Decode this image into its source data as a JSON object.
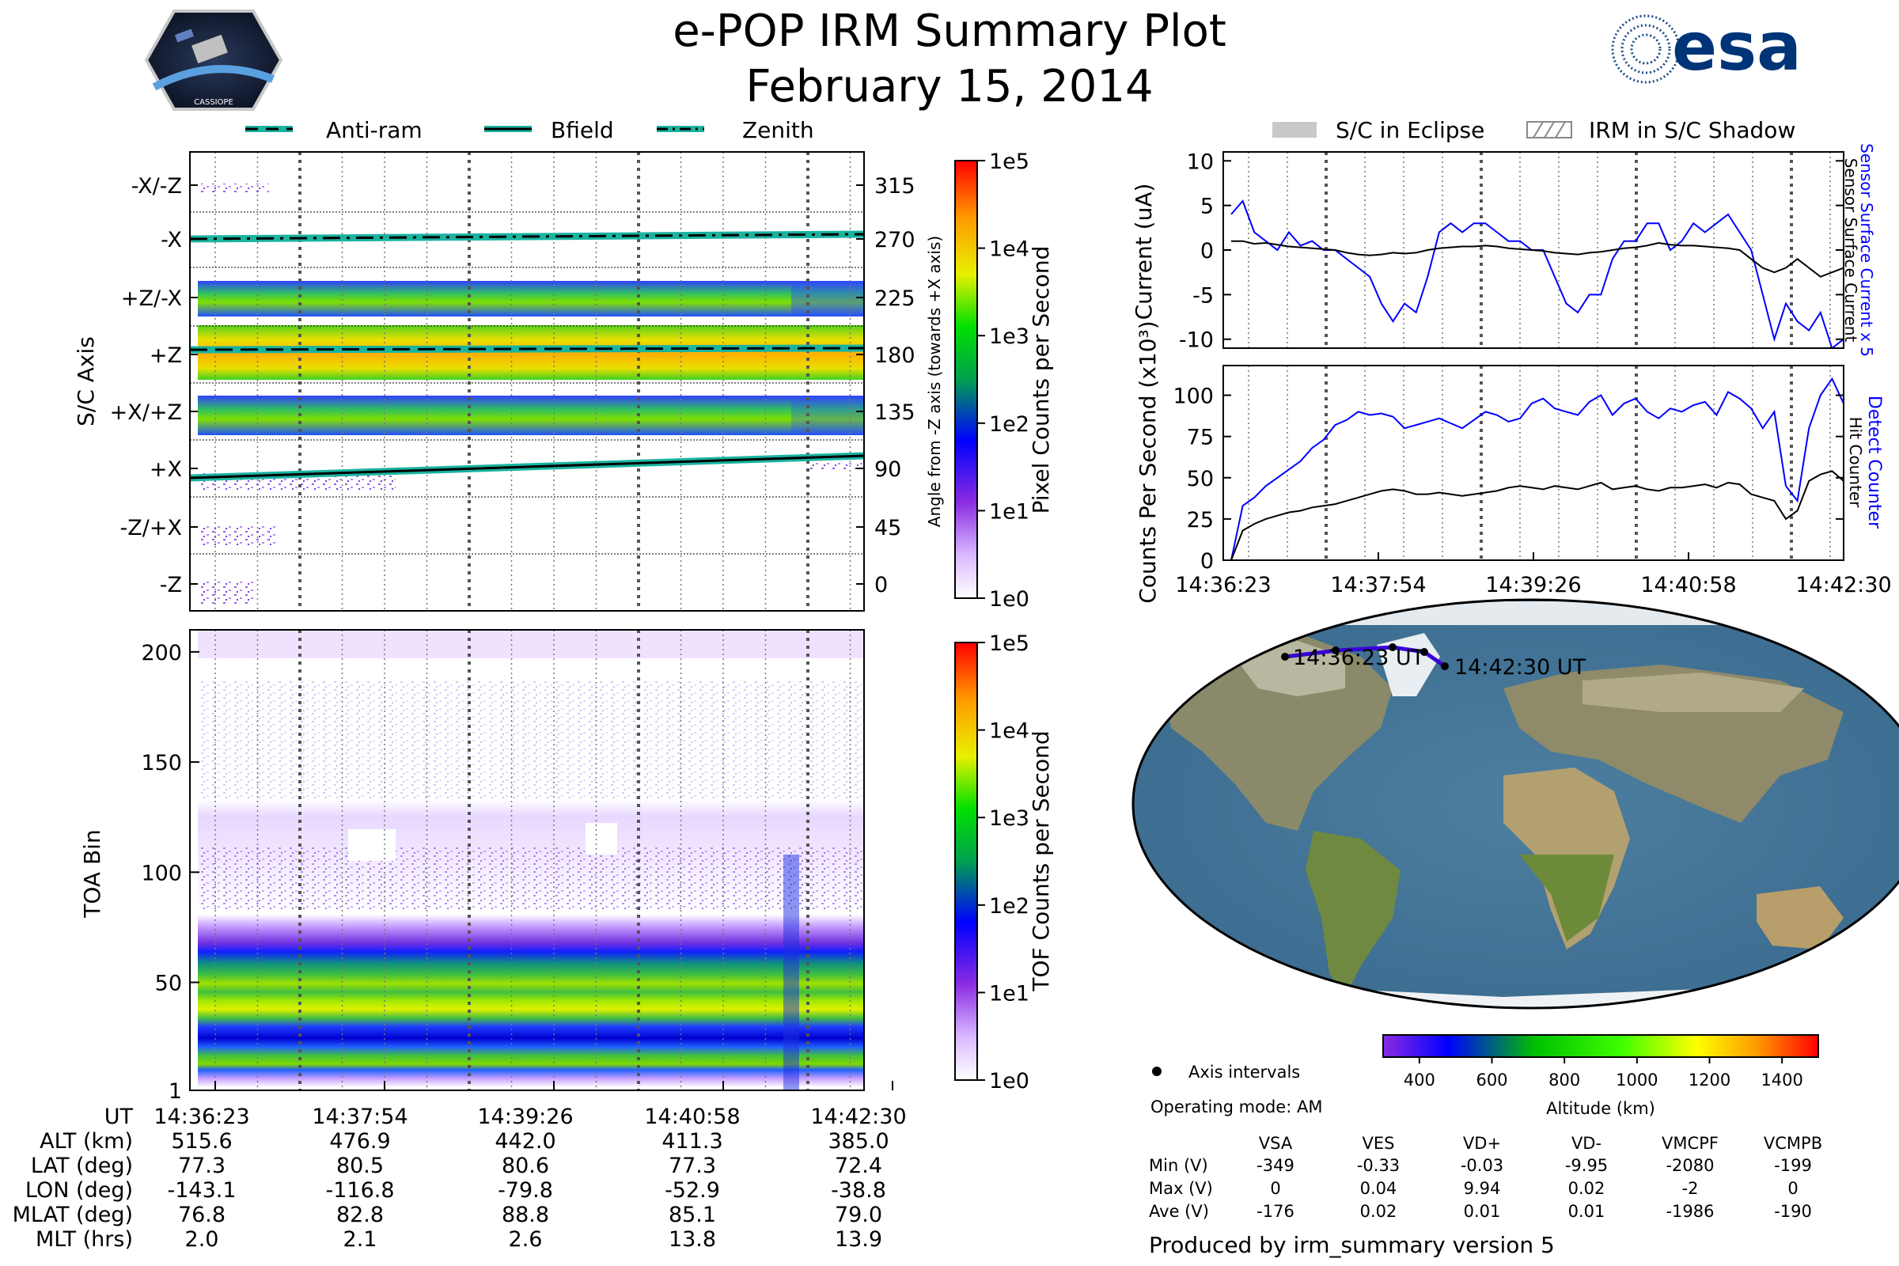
{
  "title": "e-POP IRM Summary Plot",
  "date": "February 15, 2014",
  "logos": {
    "left": "CASSIOPE",
    "right": "esa"
  },
  "footer": "Produced by irm_summary version 5",
  "top_legend": {
    "items": [
      "Anti-ram",
      "Bfield",
      "Zenith"
    ]
  },
  "eclipse_legend": {
    "items": [
      "S/C in Eclipse",
      "IRM in S/C Shadow"
    ]
  },
  "colors": {
    "accent": "#1ab3a0",
    "blue_trace": "#0000ff",
    "black_trace": "#000000",
    "map_track": "#3a00d8"
  },
  "chart_data": [
    {
      "type": "heatmap",
      "name": "pixel_counts",
      "ylabel": "S/C Axis",
      "y2label": "Angle from -Z axis (towards +X axis)",
      "axis_labels": [
        "-X/-Z",
        "-X",
        "+Z/-X",
        "+Z",
        "+X/+Z",
        "+X",
        "-Z/+X",
        "-Z"
      ],
      "angle_ticks": [
        "315",
        "270",
        "225",
        "180",
        "135",
        "90",
        "45",
        "0"
      ],
      "colorbar_label": "Pixel Counts per Second",
      "colorbar_ticks": [
        "1e5",
        "1e4",
        "1e3",
        "1e2",
        "1e1",
        "1e0"
      ],
      "lines": [
        {
          "name": "Zenith",
          "style": "dash-dot",
          "angle": [
            269,
            273
          ]
        },
        {
          "name": "Anti-ram",
          "style": "dashed",
          "angle": [
            182,
            184
          ]
        },
        {
          "name": "Bfield",
          "style": "solid",
          "angle": [
            81,
            99
          ]
        }
      ]
    },
    {
      "type": "heatmap",
      "name": "tof_counts",
      "ylabel": "TOA Bin",
      "yticks": [
        "200",
        "150",
        "100",
        "50",
        "1"
      ],
      "ylim": [
        1,
        210
      ],
      "colorbar_label": "TOF Counts per Second",
      "colorbar_ticks": [
        "1e5",
        "1e4",
        "1e3",
        "1e2",
        "1e1",
        "1e0"
      ]
    },
    {
      "type": "line",
      "name": "current",
      "ylabel": "Current (uA)",
      "yticks": [
        "10",
        "5",
        "0",
        "-5",
        "-10"
      ],
      "ylim": [
        -11,
        11
      ],
      "right_labels": [
        "Sensor Surface Current x 5",
        "Sensor Surface Current"
      ],
      "series": [
        {
          "name": "Sensor Surface Current x 5",
          "color": "#0000ff",
          "values": [
            4,
            5.5,
            2,
            1,
            0,
            2,
            0.5,
            1,
            0,
            0,
            -1,
            -2,
            -3,
            -6,
            -8,
            -6,
            -7,
            -3,
            2,
            3,
            2,
            3,
            3,
            2,
            1,
            1,
            0,
            0,
            -3,
            -6,
            -7,
            -5,
            -5,
            -1,
            1,
            1,
            3,
            3,
            0,
            1,
            3,
            2,
            3,
            4,
            2,
            0,
            -5,
            -10,
            -6,
            -8,
            -9,
            -7,
            -11,
            -10
          ]
        },
        {
          "name": "Sensor Surface Current",
          "color": "#000000",
          "values": [
            1,
            1,
            0.7,
            0.8,
            0.6,
            0.4,
            0.3,
            0.2,
            0.1,
            0,
            -0.3,
            -0.5,
            -0.6,
            -0.5,
            -0.3,
            -0.4,
            -0.3,
            0,
            0.2,
            0.3,
            0.4,
            0.4,
            0.5,
            0.4,
            0.2,
            0.1,
            0,
            -0.1,
            -0.3,
            -0.4,
            -0.5,
            -0.3,
            -0.2,
            0,
            0.2,
            0.3,
            0.5,
            0.8,
            0.6,
            0.5,
            0.5,
            0.4,
            0.3,
            0.2,
            0,
            -1,
            -2,
            -2.5,
            -2,
            -1,
            -2,
            -3,
            -2.5,
            -2
          ]
        }
      ]
    },
    {
      "type": "line",
      "name": "counts",
      "ylabel": "Counts Per Second (x10³)",
      "yticks": [
        "100",
        "75",
        "50",
        "25",
        "0"
      ],
      "ylim": [
        0,
        118
      ],
      "right_labels": [
        "Detect Counter",
        "Hit Counter"
      ],
      "xticks": [
        "14:36:23",
        "14:37:54",
        "14:39:26",
        "14:40:58",
        "14:42:30"
      ],
      "series": [
        {
          "name": "Detect Counter",
          "color": "#0000ff",
          "values": [
            0,
            33,
            38,
            45,
            50,
            55,
            60,
            68,
            73,
            82,
            85,
            90,
            88,
            89,
            87,
            80,
            82,
            84,
            86,
            83,
            80,
            85,
            90,
            88,
            84,
            86,
            95,
            98,
            92,
            90,
            88,
            96,
            100,
            88,
            95,
            98,
            90,
            86,
            92,
            90,
            94,
            96,
            88,
            102,
            98,
            92,
            80,
            90,
            45,
            36,
            80,
            100,
            110,
            95
          ]
        },
        {
          "name": "Hit Counter",
          "color": "#000000",
          "values": [
            0,
            18,
            22,
            25,
            27,
            29,
            30,
            32,
            33,
            34,
            36,
            38,
            40,
            42,
            43,
            42,
            40,
            40,
            41,
            40,
            39,
            40,
            41,
            42,
            44,
            45,
            44,
            43,
            45,
            44,
            43,
            45,
            47,
            43,
            44,
            45,
            43,
            42,
            44,
            44,
            45,
            46,
            44,
            47,
            46,
            40,
            38,
            36,
            25,
            30,
            48,
            52,
            54,
            48
          ]
        }
      ]
    },
    {
      "type": "line",
      "name": "orbit_map",
      "track_start": "14:36:23 UT",
      "track_end": "14:42:30 UT",
      "legend": "Axis intervals",
      "mode": "Operating mode: AM",
      "colorbar_label": "Altitude (km)",
      "colorbar_ticks": [
        "400",
        "600",
        "800",
        "1000",
        "1200",
        "1400"
      ]
    }
  ],
  "ephemeris": {
    "labels": [
      "UT",
      "ALT (km)",
      "LAT (deg)",
      "LON (deg)",
      "MLAT (deg)",
      "MLT (hrs)"
    ],
    "columns": [
      [
        "14:36:23",
        "515.6",
        "77.3",
        "-143.1",
        "76.8",
        "2.0"
      ],
      [
        "14:37:54",
        "476.9",
        "80.5",
        "-116.8",
        "82.8",
        "2.1"
      ],
      [
        "14:39:26",
        "442.0",
        "80.6",
        "-79.8",
        "88.8",
        "2.6"
      ],
      [
        "14:40:58",
        "411.3",
        "77.3",
        "-52.9",
        "85.1",
        "13.8"
      ],
      [
        "14:42:30",
        "385.0",
        "72.4",
        "-38.8",
        "79.0",
        "13.9"
      ]
    ]
  },
  "voltage_table": {
    "headers": [
      "VSA",
      "VES",
      "VD+",
      "VD-",
      "VMCPF",
      "VCMPB"
    ],
    "rows": [
      {
        "label": "Min (V)",
        "values": [
          "-349",
          "-0.33",
          "-0.03",
          "-9.95",
          "-2080",
          "-199"
        ]
      },
      {
        "label": "Max (V)",
        "values": [
          "0",
          "0.04",
          "9.94",
          "0.02",
          "-2",
          "0"
        ]
      },
      {
        "label": "Ave (V)",
        "values": [
          "-176",
          "0.02",
          "0.01",
          "0.01",
          "-1986",
          "-190"
        ]
      }
    ]
  }
}
